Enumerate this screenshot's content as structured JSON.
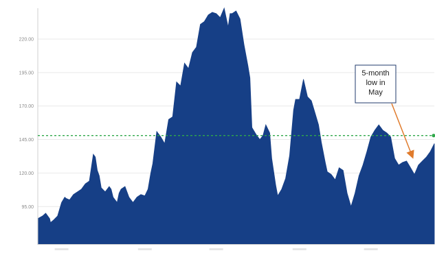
{
  "chart_data": {
    "type": "area",
    "title": "",
    "xlabel": "",
    "ylabel": "",
    "ylim": [
      67,
      243
    ],
    "yticks": [
      "95.00",
      "120.00",
      "145.00",
      "170.00",
      "195.00",
      "220.00"
    ],
    "ytick_values": [
      95,
      120,
      145,
      170,
      195,
      220
    ],
    "xticks": [
      "",
      "",
      "",
      "",
      ""
    ],
    "reference_line": {
      "value": 148,
      "style": "dashed",
      "color": "#2fa84a"
    },
    "series": [
      {
        "color": "#163f86",
        "x": [
          0,
          1.2,
          2,
          3,
          3.2,
          4,
          5,
          6,
          6.8,
          7.2,
          8,
          9,
          10,
          11,
          12,
          13,
          14,
          14.5,
          15,
          15.5,
          16,
          17,
          18,
          18.5,
          19,
          20,
          20.5,
          21,
          22,
          23,
          24,
          25,
          26,
          27,
          27.8,
          28.5,
          29,
          30,
          31,
          32,
          33,
          34,
          35,
          36,
          37,
          38,
          39,
          40,
          41,
          42,
          43,
          44,
          45,
          46,
          47,
          48,
          48.5,
          49,
          50,
          51,
          52,
          53,
          53.5,
          54,
          55,
          56,
          56.8,
          57.5,
          58.5,
          59,
          60,
          60.5,
          61.5,
          62.5,
          63.5,
          64.5,
          65,
          66,
          67,
          68,
          69,
          70,
          70.8,
          71.5,
          72.5,
          73,
          74,
          75,
          76,
          77,
          78,
          79,
          80,
          81,
          82,
          83,
          84,
          85,
          86,
          87,
          88,
          89,
          90,
          91,
          92,
          93,
          94,
          95,
          96,
          97,
          98,
          99,
          100
        ],
        "values": [
          86,
          88,
          90,
          86,
          83,
          85,
          88,
          98,
          102,
          101,
          100,
          104,
          106,
          108,
          112,
          114,
          134,
          132,
          122,
          118,
          109,
          106,
          110,
          108,
          102,
          98,
          105,
          108,
          110,
          102,
          98,
          102,
          104,
          103,
          108,
          120,
          127,
          151,
          147,
          142,
          160,
          162,
          188,
          185,
          202,
          198,
          210,
          214,
          231,
          233,
          238,
          240,
          239,
          236,
          243,
          229,
          239,
          239,
          241,
          235,
          216,
          200,
          191,
          154,
          149,
          145,
          148,
          156,
          150,
          131,
          111,
          103,
          108,
          116,
          133,
          167,
          175,
          175,
          190,
          177,
          174,
          164,
          156,
          143,
          128,
          121,
          119,
          115,
          124,
          122,
          105,
          95,
          105,
          118,
          126,
          136,
          147,
          152,
          156,
          152,
          150,
          147,
          131,
          126,
          128,
          129,
          124,
          119,
          126,
          129,
          132,
          136,
          142
        ]
      }
    ],
    "annotation": {
      "text": [
        "5-month",
        "low in",
        "May"
      ],
      "target_x": 94.5,
      "target_y": 130
    }
  },
  "colors": {
    "area": "#163f86",
    "reference_line": "#2fa84a",
    "arrow": "#e07b2c",
    "grid": "#e9e9e9",
    "axis": "#cfcfcf",
    "box_border": "#1f3a6b"
  }
}
